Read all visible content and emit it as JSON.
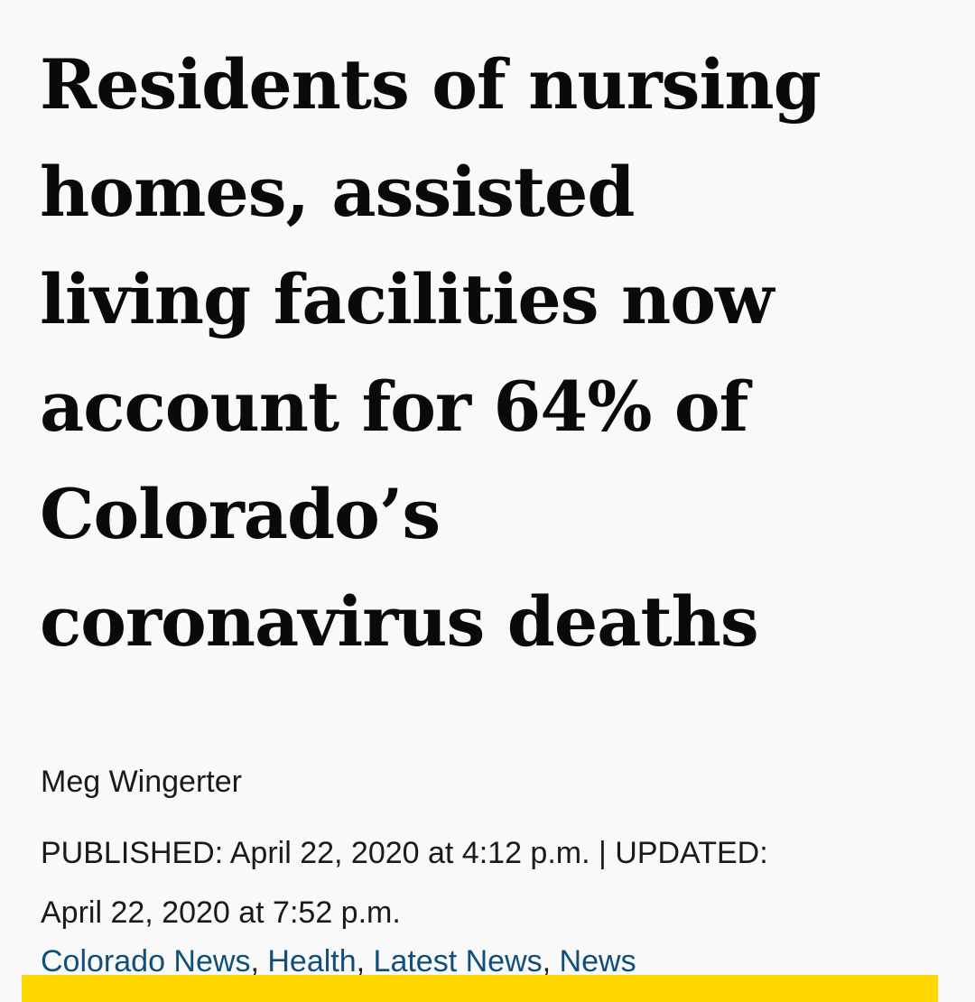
{
  "article": {
    "headline_lines": [
      "Residents of nursing",
      "homes, assisted",
      "living facilities now",
      "account for 64% of",
      "Colorado’s",
      "coronavirus deaths"
    ],
    "author": "Meg Wingerter",
    "dateline_line1": "PUBLISHED: April 22, 2020 at 4:12 p.m. | UPDATED:",
    "dateline_line2": "April 22, 2020 at 7:52 p.m.",
    "categories": [
      "Colorado News",
      "Health",
      "Latest News",
      "News"
    ],
    "separator": ", "
  },
  "colors": {
    "background": "#f9f9f9",
    "category_link": "#0f4f7a",
    "accent_bar": "#ffd700"
  }
}
